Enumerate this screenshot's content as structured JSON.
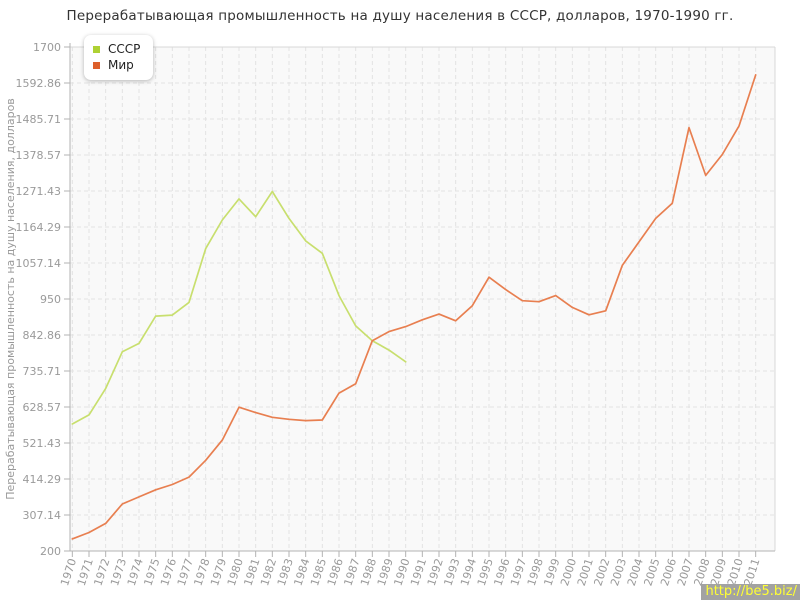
{
  "title": "Перерабатывающая промышленность на душу населения в СССР, долларов, 1970-1990 гг.",
  "watermark": "http://be5.biz/",
  "legend": {
    "items": [
      {
        "label": "СССР",
        "swatch_color": "#aed134"
      },
      {
        "label": "Мир",
        "swatch_color": "#dd5f2b"
      }
    ]
  },
  "colors": {
    "axis": "#b3b3b3",
    "grid": "#e2e2e2",
    "plot_border": "#d8d8d8",
    "plot_background": "#f9f9f9",
    "tick_label": "#9a9a9a",
    "axis_title": "#999999"
  },
  "chart_data": {
    "type": "line",
    "title": "Перерабатывающая промышленность на душу населения в СССР, долларов, 1970-1990 гг.",
    "xlabel": "",
    "ylabel": "Перерабатывающая промышленность на душу населения, долларов",
    "ylim": [
      200,
      1700
    ],
    "yticks": [
      200,
      307.14,
      414.29,
      521.43,
      628.57,
      735.71,
      842.86,
      950,
      1057.14,
      1164.29,
      1271.43,
      1378.57,
      1485.71,
      1592.86,
      1700
    ],
    "ytick_labels": [
      "200",
      "307.14",
      "414.29",
      "521.43",
      "628.57",
      "735.71",
      "842.86",
      "950",
      "1057.14",
      "1164.29",
      "1271.43",
      "1378.57",
      "1485.71",
      "1592.86",
      "1700"
    ],
    "x": [
      1970,
      1971,
      1972,
      1973,
      1974,
      1975,
      1976,
      1977,
      1978,
      1979,
      1980,
      1981,
      1982,
      1983,
      1984,
      1985,
      1986,
      1987,
      1988,
      1989,
      1990,
      1991,
      1992,
      1993,
      1994,
      1995,
      1996,
      1997,
      1998,
      1999,
      2000,
      2001,
      2002,
      2003,
      2004,
      2005,
      2006,
      2007,
      2008,
      2009,
      2010,
      2011
    ],
    "grid": true,
    "legend_position": "top-left",
    "series": [
      {
        "name": "СССР",
        "line_color": "#c8df6e",
        "years": [
          1970,
          1971,
          1972,
          1973,
          1974,
          1975,
          1976,
          1977,
          1978,
          1979,
          1980,
          1981,
          1982,
          1983,
          1984,
          1985,
          1986,
          1987,
          1988,
          1989,
          1990
        ],
        "values": [
          578,
          605,
          684,
          793,
          818,
          899,
          902,
          940,
          1100,
          1185,
          1248,
          1195,
          1270,
          1190,
          1123,
          1086,
          960,
          870,
          826,
          798,
          763
        ]
      },
      {
        "name": "Мир",
        "line_color": "#e87f50",
        "years": [
          1970,
          1971,
          1972,
          1973,
          1974,
          1975,
          1976,
          1977,
          1978,
          1979,
          1980,
          1981,
          1982,
          1983,
          1984,
          1985,
          1986,
          1987,
          1988,
          1989,
          1990,
          1991,
          1992,
          1993,
          1994,
          1995,
          1996,
          1997,
          1998,
          1999,
          2000,
          2001,
          2002,
          2003,
          2004,
          2005,
          2006,
          2007,
          2008,
          2009,
          2010,
          2011
        ],
        "values": [
          236,
          255,
          282,
          340,
          361,
          382,
          398,
          420,
          470,
          530,
          628,
          612,
          598,
          592,
          588,
          590,
          670,
          698,
          826,
          853,
          868,
          888,
          905,
          885,
          930,
          1015,
          978,
          945,
          942,
          960,
          925,
          903,
          915,
          1050,
          1120,
          1190,
          1235,
          1460,
          1318,
          1380,
          1465,
          1617
        ]
      }
    ]
  }
}
